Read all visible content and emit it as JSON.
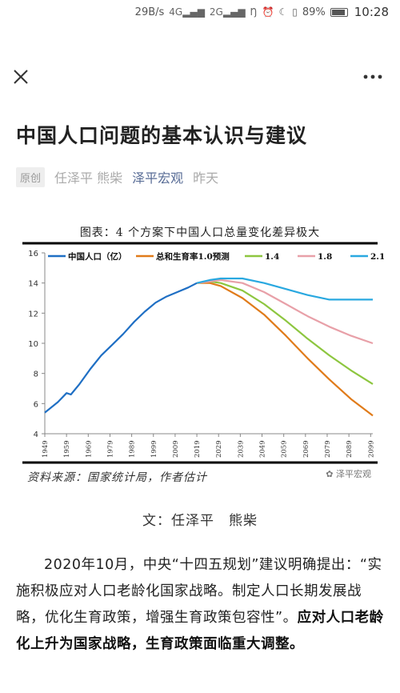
{
  "status": {
    "speed": "29B/s",
    "signal1": "4G",
    "signal2": "2G",
    "battery": "89%",
    "time": "10:28"
  },
  "article": {
    "title": "中国人口问题的基本认识与建议",
    "tag": "原创",
    "authors": "任泽平 熊柴",
    "account": "泽平宏观",
    "time": "昨天",
    "byline": "文：任泽平　熊柴",
    "para_normal": "2020年10月，中央“十四五规划”建议明确提出：“实施积极应对人口老龄化国家战略。制定人口长期发展战略，优化生育政策，增强生育政策包容性”。",
    "para_bold": "应对人口老龄化上升为国家战略，生育政策面临重大调整。"
  },
  "chart_data": {
    "type": "line",
    "title": "图表：4 个方案下中国人口总量变化差异极大",
    "source": "资料来源：国家统计局，作者估计",
    "watermark": "泽平宏观",
    "ylim": [
      4,
      16
    ],
    "yticks": [
      4,
      6,
      8,
      10,
      12,
      14,
      16
    ],
    "xlim": [
      1949,
      2100
    ],
    "xticks": [
      "1949",
      "1959",
      "1969",
      "1979",
      "1989",
      "1999",
      "2009",
      "2019",
      "2029",
      "2039",
      "2049",
      "2059",
      "2069",
      "2079",
      "2089",
      "2099"
    ],
    "grid": false,
    "legend_position": "top",
    "series": [
      {
        "name": "中国人口（亿）",
        "color": "#1f6fc4",
        "x": [
          1949,
          1955,
          1959,
          1961,
          1965,
          1970,
          1975,
          1980,
          1985,
          1990,
          1995,
          2000,
          2005,
          2010,
          2015,
          2019
        ],
        "y": [
          5.4,
          6.1,
          6.7,
          6.6,
          7.3,
          8.3,
          9.2,
          9.9,
          10.6,
          11.4,
          12.1,
          12.7,
          13.1,
          13.4,
          13.7,
          14.0
        ]
      },
      {
        "name": "总和生育率1.0预测",
        "color": "#e07b1a",
        "x": [
          2019,
          2025,
          2030,
          2040,
          2050,
          2060,
          2070,
          2080,
          2090,
          2100
        ],
        "y": [
          14.0,
          14.0,
          13.8,
          13.0,
          11.9,
          10.5,
          9.0,
          7.6,
          6.3,
          5.2
        ]
      },
      {
        "name": "1.4",
        "color": "#8dc63f",
        "x": [
          2019,
          2025,
          2030,
          2040,
          2050,
          2060,
          2070,
          2080,
          2090,
          2100
        ],
        "y": [
          14.0,
          14.1,
          14.0,
          13.5,
          12.6,
          11.5,
          10.3,
          9.2,
          8.2,
          7.3
        ]
      },
      {
        "name": "1.8",
        "color": "#e8a0a8",
        "x": [
          2019,
          2025,
          2030,
          2040,
          2050,
          2060,
          2070,
          2080,
          2090,
          2100
        ],
        "y": [
          14.0,
          14.1,
          14.2,
          14.0,
          13.4,
          12.6,
          11.8,
          11.1,
          10.5,
          10.0
        ]
      },
      {
        "name": "2.1",
        "color": "#29a8e0",
        "x": [
          2019,
          2025,
          2030,
          2035,
          2040,
          2050,
          2060,
          2070,
          2080,
          2090,
          2100
        ],
        "y": [
          14.0,
          14.2,
          14.3,
          14.3,
          14.3,
          14.0,
          13.6,
          13.2,
          12.9,
          12.9,
          12.9
        ]
      }
    ]
  }
}
